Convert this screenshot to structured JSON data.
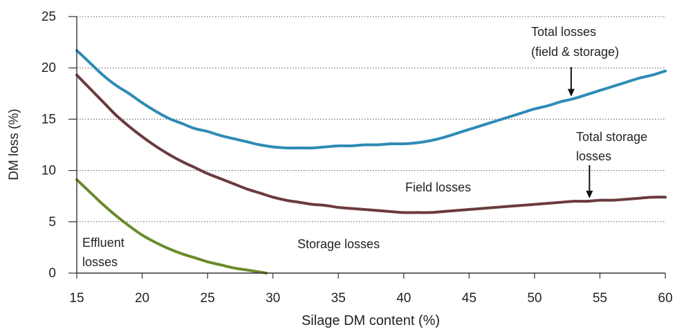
{
  "chart_data": {
    "type": "line",
    "title": "",
    "xlabel": "Silage DM content (%)",
    "ylabel": "DM loss (%)",
    "xlim": [
      15,
      60
    ],
    "ylim": [
      0,
      25
    ],
    "xticks": [
      "15",
      "20",
      "25",
      "30",
      "35",
      "40",
      "45",
      "50",
      "55",
      "60"
    ],
    "yticks": [
      "0",
      "5",
      "10",
      "15",
      "20",
      "25"
    ],
    "grid": "horizontal dotted",
    "series": [
      {
        "key": "total",
        "color": "#2e8bb5",
        "x": [
          15,
          16,
          17,
          18,
          19,
          20,
          21,
          22,
          23,
          24,
          25,
          26,
          27,
          28,
          29,
          30,
          31,
          32,
          33,
          34,
          35,
          36,
          37,
          38,
          39,
          40,
          41,
          42,
          43,
          44,
          45,
          46,
          47,
          48,
          49,
          50,
          51,
          52,
          53,
          54,
          55,
          56,
          57,
          58,
          59,
          60
        ],
        "y": [
          21.7,
          20.5,
          19.3,
          18.3,
          17.5,
          16.6,
          15.8,
          15.1,
          14.6,
          14.1,
          13.8,
          13.4,
          13.1,
          12.8,
          12.5,
          12.3,
          12.2,
          12.2,
          12.2,
          12.3,
          12.4,
          12.4,
          12.5,
          12.5,
          12.6,
          12.6,
          12.7,
          12.9,
          13.2,
          13.6,
          14.0,
          14.4,
          14.8,
          15.2,
          15.6,
          16.0,
          16.3,
          16.7,
          17.0,
          17.4,
          17.8,
          18.2,
          18.6,
          19.0,
          19.3,
          19.7
        ]
      },
      {
        "key": "storage_total",
        "color": "#6b3a3e",
        "x": [
          15,
          16,
          17,
          18,
          19,
          20,
          21,
          22,
          23,
          24,
          25,
          26,
          27,
          28,
          29,
          30,
          31,
          32,
          33,
          34,
          35,
          36,
          37,
          38,
          39,
          40,
          41,
          42,
          43,
          44,
          45,
          46,
          47,
          48,
          49,
          50,
          51,
          52,
          53,
          54,
          55,
          56,
          57,
          58,
          59,
          60
        ],
        "y": [
          19.3,
          18.0,
          16.7,
          15.4,
          14.3,
          13.3,
          12.4,
          11.6,
          10.9,
          10.3,
          9.7,
          9.2,
          8.7,
          8.2,
          7.8,
          7.4,
          7.1,
          6.9,
          6.7,
          6.6,
          6.4,
          6.3,
          6.2,
          6.1,
          6.0,
          5.9,
          5.9,
          5.9,
          6.0,
          6.1,
          6.2,
          6.3,
          6.4,
          6.5,
          6.6,
          6.7,
          6.8,
          6.9,
          7.0,
          7.0,
          7.1,
          7.1,
          7.2,
          7.3,
          7.4,
          7.4
        ]
      },
      {
        "key": "effluent",
        "color": "#6a8a2c",
        "x": [
          15,
          16,
          17,
          18,
          19,
          20,
          21,
          22,
          23,
          24,
          25,
          26,
          27,
          28,
          29,
          29.5
        ],
        "y": [
          9.1,
          7.9,
          6.7,
          5.6,
          4.6,
          3.7,
          3.0,
          2.4,
          1.9,
          1.5,
          1.1,
          0.8,
          0.5,
          0.3,
          0.1,
          0.0
        ]
      }
    ],
    "annotations": {
      "total_line1": "Total losses",
      "total_line2": "(field & storage)",
      "storage_total_line1": "Total storage",
      "storage_total_line2": "losses",
      "field": "Field losses",
      "storage": "Storage losses",
      "effluent_line1": "Effluent",
      "effluent_line2": "losses"
    },
    "arrows": [
      {
        "target": "total",
        "at_x": 52.8
      },
      {
        "target": "storage_total",
        "at_x": 54.2
      }
    ]
  }
}
